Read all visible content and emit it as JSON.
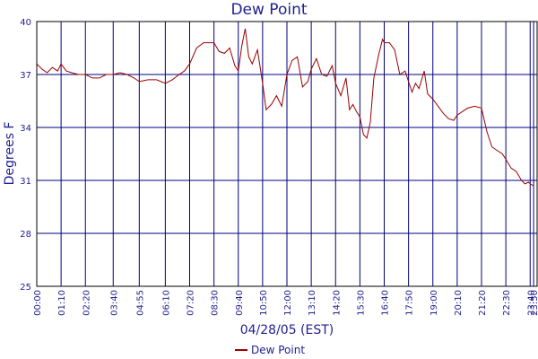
{
  "chart_data": {
    "type": "line",
    "title": "Dew Point",
    "xlabel": "04/28/05 (EST)",
    "ylabel": "Degrees F",
    "ylim": [
      25,
      40
    ],
    "yticks": [
      25,
      28,
      31,
      34,
      37,
      40
    ],
    "x_ticks": [
      "00:00",
      "01:10",
      "02:20",
      "03:40",
      "04:55",
      "06:10",
      "07:20",
      "08:30",
      "09:40",
      "10:50",
      "12:00",
      "13:10",
      "14:20",
      "15:30",
      "16:40",
      "17:50",
      "19:00",
      "20:10",
      "21:20",
      "22:30",
      "23:40",
      "23:50"
    ],
    "grid": true,
    "legend": "bottom-center",
    "series": [
      {
        "name": "Dew Point",
        "color": "#990000",
        "points": [
          [
            "00:00",
            37.6
          ],
          [
            "00:15",
            37.3
          ],
          [
            "00:30",
            37.1
          ],
          [
            "00:45",
            37.4
          ],
          [
            "01:00",
            37.2
          ],
          [
            "01:10",
            37.6
          ],
          [
            "01:25",
            37.2
          ],
          [
            "01:40",
            37.1
          ],
          [
            "02:00",
            37.0
          ],
          [
            "02:20",
            37.0
          ],
          [
            "02:40",
            36.8
          ],
          [
            "03:00",
            36.8
          ],
          [
            "03:20",
            37.0
          ],
          [
            "03:40",
            37.0
          ],
          [
            "04:00",
            37.1
          ],
          [
            "04:20",
            37.0
          ],
          [
            "04:40",
            36.8
          ],
          [
            "04:55",
            36.6
          ],
          [
            "05:20",
            36.7
          ],
          [
            "05:45",
            36.7
          ],
          [
            "06:10",
            36.5
          ],
          [
            "06:30",
            36.7
          ],
          [
            "06:50",
            37.0
          ],
          [
            "07:05",
            37.2
          ],
          [
            "07:20",
            37.6
          ],
          [
            "07:40",
            38.5
          ],
          [
            "08:00",
            38.8
          ],
          [
            "08:15",
            38.8
          ],
          [
            "08:30",
            38.8
          ],
          [
            "08:45",
            38.3
          ],
          [
            "09:00",
            38.2
          ],
          [
            "09:15",
            38.5
          ],
          [
            "09:30",
            37.5
          ],
          [
            "09:40",
            37.2
          ],
          [
            "09:50",
            38.6
          ],
          [
            "10:00",
            39.6
          ],
          [
            "10:10",
            38.0
          ],
          [
            "10:20",
            37.6
          ],
          [
            "10:35",
            38.4
          ],
          [
            "10:50",
            36.5
          ],
          [
            "11:00",
            35.0
          ],
          [
            "11:15",
            35.3
          ],
          [
            "11:30",
            35.8
          ],
          [
            "11:45",
            35.2
          ],
          [
            "12:00",
            37.0
          ],
          [
            "12:15",
            37.8
          ],
          [
            "12:30",
            38.0
          ],
          [
            "12:45",
            36.3
          ],
          [
            "13:00",
            36.6
          ],
          [
            "13:10",
            37.3
          ],
          [
            "13:25",
            37.9
          ],
          [
            "13:40",
            37.0
          ],
          [
            "13:55",
            36.9
          ],
          [
            "14:10",
            37.5
          ],
          [
            "14:20",
            36.5
          ],
          [
            "14:35",
            35.8
          ],
          [
            "14:50",
            36.8
          ],
          [
            "15:00",
            35.0
          ],
          [
            "15:10",
            35.3
          ],
          [
            "15:20",
            34.9
          ],
          [
            "15:30",
            34.6
          ],
          [
            "15:40",
            33.6
          ],
          [
            "15:50",
            33.4
          ],
          [
            "16:00",
            34.3
          ],
          [
            "16:10",
            36.8
          ],
          [
            "16:25",
            38.2
          ],
          [
            "16:35",
            39.0
          ],
          [
            "16:40",
            38.8
          ],
          [
            "16:55",
            38.8
          ],
          [
            "17:10",
            38.4
          ],
          [
            "17:25",
            37.0
          ],
          [
            "17:40",
            37.2
          ],
          [
            "17:50",
            36.6
          ],
          [
            "18:00",
            36.0
          ],
          [
            "18:10",
            36.5
          ],
          [
            "18:20",
            36.2
          ],
          [
            "18:35",
            37.2
          ],
          [
            "18:45",
            35.9
          ],
          [
            "19:00",
            35.6
          ],
          [
            "19:15",
            35.2
          ],
          [
            "19:30",
            34.8
          ],
          [
            "19:45",
            34.5
          ],
          [
            "20:00",
            34.4
          ],
          [
            "20:10",
            34.7
          ],
          [
            "20:25",
            34.9
          ],
          [
            "20:40",
            35.1
          ],
          [
            "21:00",
            35.2
          ],
          [
            "21:20",
            35.1
          ],
          [
            "21:35",
            33.8
          ],
          [
            "21:50",
            32.9
          ],
          [
            "22:05",
            32.7
          ],
          [
            "22:20",
            32.5
          ],
          [
            "22:30",
            32.2
          ],
          [
            "22:45",
            31.7
          ],
          [
            "23:00",
            31.5
          ],
          [
            "23:15",
            31.0
          ],
          [
            "23:25",
            30.8
          ],
          [
            "23:35",
            30.9
          ],
          [
            "23:40",
            30.8
          ],
          [
            "23:50",
            30.7
          ]
        ]
      }
    ]
  }
}
